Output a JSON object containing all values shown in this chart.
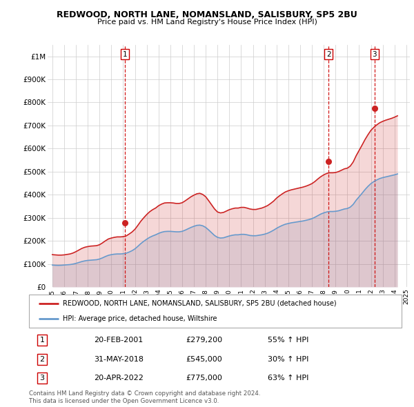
{
  "title": "REDWOOD, NORTH LANE, NOMANSLAND, SALISBURY, SP5 2BU",
  "subtitle": "Price paid vs. HM Land Registry's House Price Index (HPI)",
  "ylim": [
    0,
    1050000
  ],
  "yticks": [
    0,
    100000,
    200000,
    300000,
    400000,
    500000,
    600000,
    700000,
    800000,
    900000,
    1000000
  ],
  "ytick_labels": [
    "£0",
    "£100K",
    "£200K",
    "£300K",
    "£400K",
    "£500K",
    "£600K",
    "£700K",
    "£800K",
    "£900K",
    "£1M"
  ],
  "hpi_color": "#6699cc",
  "price_color": "#cc2222",
  "vline_color": "#cc0000",
  "transaction_dates": [
    2001.13,
    2018.42,
    2022.3
  ],
  "transaction_labels": [
    "1",
    "2",
    "3"
  ],
  "transaction_prices": [
    279200,
    545000,
    775000
  ],
  "legend_line1": "REDWOOD, NORTH LANE, NOMANSLAND, SALISBURY, SP5 2BU (detached house)",
  "legend_line2": "HPI: Average price, detached house, Wiltshire",
  "table_rows": [
    [
      "1",
      "20-FEB-2001",
      "£279,200",
      "55% ↑ HPI"
    ],
    [
      "2",
      "31-MAY-2018",
      "£545,000",
      "30% ↑ HPI"
    ],
    [
      "3",
      "20-APR-2022",
      "£775,000",
      "63% ↑ HPI"
    ]
  ],
  "footnote": "Contains HM Land Registry data © Crown copyright and database right 2024.\nThis data is licensed under the Open Government Licence v3.0.",
  "hpi_data": {
    "years": [
      1995,
      1995.25,
      1995.5,
      1995.75,
      1996,
      1996.25,
      1996.5,
      1996.75,
      1997,
      1997.25,
      1997.5,
      1997.75,
      1998,
      1998.25,
      1998.5,
      1998.75,
      1999,
      1999.25,
      1999.5,
      1999.75,
      2000,
      2000.25,
      2000.5,
      2000.75,
      2001,
      2001.25,
      2001.5,
      2001.75,
      2002,
      2002.25,
      2002.5,
      2002.75,
      2003,
      2003.25,
      2003.5,
      2003.75,
      2004,
      2004.25,
      2004.5,
      2004.75,
      2005,
      2005.25,
      2005.5,
      2005.75,
      2006,
      2006.25,
      2006.5,
      2006.75,
      2007,
      2007.25,
      2007.5,
      2007.75,
      2008,
      2008.25,
      2008.5,
      2008.75,
      2009,
      2009.25,
      2009.5,
      2009.75,
      2010,
      2010.25,
      2010.5,
      2010.75,
      2011,
      2011.25,
      2011.5,
      2011.75,
      2012,
      2012.25,
      2012.5,
      2012.75,
      2013,
      2013.25,
      2013.5,
      2013.75,
      2014,
      2014.25,
      2014.5,
      2014.75,
      2015,
      2015.25,
      2015.5,
      2015.75,
      2016,
      2016.25,
      2016.5,
      2016.75,
      2017,
      2017.25,
      2017.5,
      2017.75,
      2018,
      2018.25,
      2018.5,
      2018.75,
      2019,
      2019.25,
      2019.5,
      2019.75,
      2020,
      2020.25,
      2020.5,
      2020.75,
      2021,
      2021.25,
      2021.5,
      2021.75,
      2022,
      2022.25,
      2022.5,
      2022.75,
      2023,
      2023.25,
      2023.5,
      2023.75,
      2024,
      2024.25
    ],
    "values": [
      95000,
      94000,
      93500,
      94000,
      95000,
      96000,
      97000,
      99000,
      102000,
      106000,
      110000,
      113000,
      115000,
      116000,
      117000,
      118000,
      121000,
      126000,
      132000,
      137000,
      140000,
      142000,
      143000,
      143000,
      144000,
      146000,
      151000,
      157000,
      165000,
      176000,
      188000,
      198000,
      207000,
      215000,
      221000,
      226000,
      232000,
      237000,
      240000,
      241000,
      241000,
      240000,
      239000,
      239000,
      241000,
      246000,
      252000,
      258000,
      263000,
      267000,
      268000,
      265000,
      258000,
      247000,
      235000,
      223000,
      215000,
      212000,
      213000,
      217000,
      221000,
      224000,
      226000,
      226000,
      228000,
      228000,
      226000,
      223000,
      222000,
      222000,
      224000,
      226000,
      229000,
      233000,
      239000,
      246000,
      254000,
      261000,
      267000,
      272000,
      275000,
      278000,
      280000,
      282000,
      284000,
      286000,
      289000,
      292000,
      296000,
      302000,
      309000,
      316000,
      321000,
      325000,
      327000,
      327000,
      328000,
      330000,
      334000,
      338000,
      340000,
      346000,
      358000,
      376000,
      391000,
      406000,
      422000,
      436000,
      448000,
      457000,
      464000,
      470000,
      474000,
      477000,
      480000,
      483000,
      486000,
      490000
    ]
  },
  "price_data": {
    "years": [
      1995,
      1995.25,
      1995.5,
      1995.75,
      1996,
      1996.25,
      1996.5,
      1996.75,
      1997,
      1997.25,
      1997.5,
      1997.75,
      1998,
      1998.25,
      1998.5,
      1998.75,
      1999,
      1999.25,
      1999.5,
      1999.75,
      2000,
      2000.25,
      2000.5,
      2000.75,
      2001,
      2001.25,
      2001.5,
      2001.75,
      2002,
      2002.25,
      2002.5,
      2002.75,
      2003,
      2003.25,
      2003.5,
      2003.75,
      2004,
      2004.25,
      2004.5,
      2004.75,
      2005,
      2005.25,
      2005.5,
      2005.75,
      2006,
      2006.25,
      2006.5,
      2006.75,
      2007,
      2007.25,
      2007.5,
      2007.75,
      2008,
      2008.25,
      2008.5,
      2008.75,
      2009,
      2009.25,
      2009.5,
      2009.75,
      2010,
      2010.25,
      2010.5,
      2010.75,
      2011,
      2011.25,
      2011.5,
      2011.75,
      2012,
      2012.25,
      2012.5,
      2012.75,
      2013,
      2013.25,
      2013.5,
      2013.75,
      2014,
      2014.25,
      2014.5,
      2014.75,
      2015,
      2015.25,
      2015.5,
      2015.75,
      2016,
      2016.25,
      2016.5,
      2016.75,
      2017,
      2017.25,
      2017.5,
      2017.75,
      2018,
      2018.25,
      2018.5,
      2018.75,
      2019,
      2019.25,
      2019.5,
      2019.75,
      2020,
      2020.25,
      2020.5,
      2020.75,
      2021,
      2021.25,
      2021.5,
      2021.75,
      2022,
      2022.25,
      2022.5,
      2022.75,
      2023,
      2023.25,
      2023.5,
      2023.75,
      2024,
      2024.25
    ],
    "values": [
      140000,
      139000,
      138000,
      138000,
      139000,
      141000,
      143000,
      147000,
      153000,
      160000,
      167000,
      172000,
      175000,
      177000,
      178000,
      179000,
      183000,
      191000,
      200000,
      208000,
      212000,
      215000,
      217000,
      217000,
      218000,
      221000,
      229000,
      238000,
      250000,
      267000,
      285000,
      300000,
      314000,
      326000,
      335000,
      342000,
      352000,
      359000,
      364000,
      365000,
      365000,
      364000,
      362000,
      362000,
      365000,
      373000,
      382000,
      391000,
      398000,
      404000,
      406000,
      401000,
      391000,
      374000,
      356000,
      338000,
      325000,
      321000,
      323000,
      329000,
      335000,
      339000,
      342000,
      342000,
      345000,
      345000,
      342000,
      338000,
      336000,
      336000,
      339000,
      342000,
      347000,
      353000,
      362000,
      372000,
      385000,
      395000,
      404000,
      412000,
      417000,
      421000,
      424000,
      427000,
      430000,
      433000,
      437000,
      442000,
      448000,
      457000,
      468000,
      478000,
      486000,
      492000,
      495000,
      495000,
      496000,
      500000,
      506000,
      512000,
      515000,
      524000,
      542000,
      569000,
      592000,
      615000,
      639000,
      660000,
      679000,
      692000,
      703000,
      712000,
      718000,
      723000,
      727000,
      731000,
      736000,
      742000
    ]
  }
}
